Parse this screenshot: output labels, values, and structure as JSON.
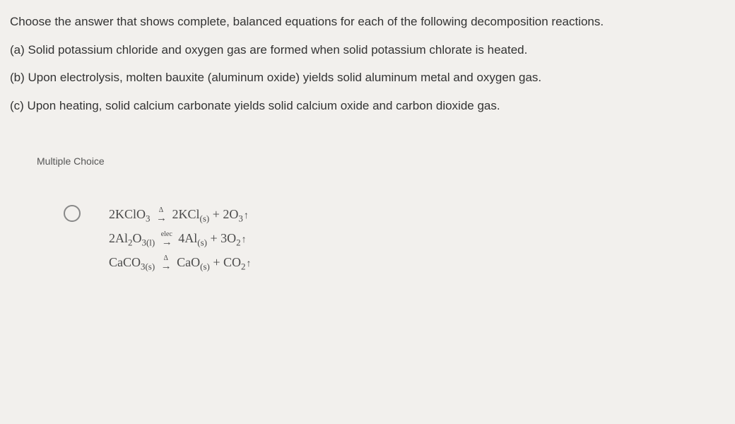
{
  "question": {
    "intro": "Choose the answer that shows complete, balanced equations for each of the following decomposition reactions.",
    "parts": {
      "a": "(a) Solid potassium chloride and oxygen gas are formed when solid potassium chlorate is heated.",
      "b": "(b) Upon electrolysis, molten bauxite (aluminum oxide) yields solid aluminum metal and oxygen gas.",
      "c": "(c) Upon heating, solid calcium carbonate yields solid calcium oxide and carbon dioxide gas."
    }
  },
  "mc_label": "Multiple Choice",
  "option1": {
    "eq1": {
      "lhs_coef": "2",
      "lhs_formula": "KClO",
      "lhs_sub": "3",
      "arrow_label": "Δ",
      "rhs1_coef": "2",
      "rhs1_formula": "KCl",
      "rhs1_phase": "(s)",
      "plus": "+",
      "rhs2_coef": "2",
      "rhs2_formula": "O",
      "rhs2_sub": "3"
    },
    "eq2": {
      "lhs_coef": "2",
      "lhs_formula": "Al",
      "lhs_mid_sub": "2",
      "lhs_formula2": "O",
      "lhs_sub": "3",
      "lhs_phase": "(l)",
      "arrow_label": "elec",
      "rhs1_coef": "4",
      "rhs1_formula": "Al",
      "rhs1_phase": "(s)",
      "plus": "+",
      "rhs2_coef": "3",
      "rhs2_formula": "O",
      "rhs2_sub": "2"
    },
    "eq3": {
      "lhs_formula": "CaCO",
      "lhs_sub": "3",
      "lhs_phase": "(s)",
      "arrow_label": "Δ",
      "rhs1_formula": "CaO",
      "rhs1_phase": "(s)",
      "plus": "+",
      "rhs2_formula": "CO",
      "rhs2_sub": "2"
    }
  },
  "style": {
    "background": "#f2f0ed",
    "text_color": "#333333",
    "eq_color": "#4a4a4a",
    "question_fontsize": 17,
    "eq_fontsize": 18,
    "mc_fontsize": 14,
    "radio_border": "#888888"
  }
}
